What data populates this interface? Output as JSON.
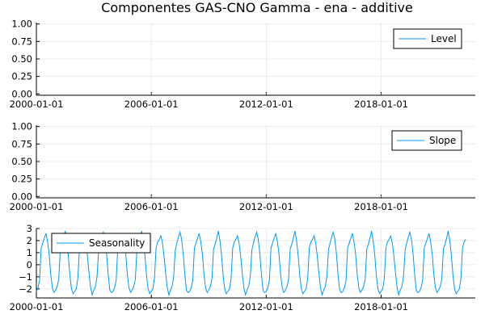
{
  "title": "Componentes GAS-CNO Gamma - ena - additive",
  "colors": {
    "series": "#009AFA",
    "grid": "#E6E6E6",
    "axis": "#000000",
    "background": "#FFFFFF"
  },
  "chart_data": [
    {
      "type": "line",
      "series": [
        {
          "name": "Level",
          "x": [],
          "values": []
        }
      ],
      "xlim": [
        "2000-01-01",
        "2022-12-01"
      ],
      "ylim": [
        -0.02,
        1.02
      ],
      "xticks": [
        "2000-01-01",
        "2006-01-01",
        "2012-01-01",
        "2018-01-01"
      ],
      "yticks": [
        0.0,
        0.25,
        0.5,
        0.75,
        1.0
      ],
      "ytick_labels": [
        "0.00",
        "0.25",
        "0.50",
        "0.75",
        "1.00"
      ],
      "legend_position": "top-right",
      "grid": true
    },
    {
      "type": "line",
      "series": [
        {
          "name": "Slope",
          "x": [],
          "values": []
        }
      ],
      "xlim": [
        "2000-01-01",
        "2022-12-01"
      ],
      "ylim": [
        -0.02,
        1.02
      ],
      "xticks": [
        "2000-01-01",
        "2006-01-01",
        "2012-01-01",
        "2018-01-01"
      ],
      "yticks": [
        0.0,
        0.25,
        0.5,
        0.75,
        1.0
      ],
      "ytick_labels": [
        "0.00",
        "0.25",
        "0.50",
        "0.75",
        "1.00"
      ],
      "legend_position": "top-right",
      "grid": true
    },
    {
      "type": "line",
      "series": [
        {
          "name": "Seasonality",
          "x_start": "2000-01-01",
          "x_end": "2022-06-01",
          "x_step": "1 month",
          "values": [
            -2.2,
            -1.9,
            -1.3,
            1.4,
            1.8,
            2.2,
            2.6,
            1.9,
            0.9,
            -0.8,
            -1.9,
            -2.3,
            -2.1,
            -1.8,
            -1.2,
            1.3,
            1.7,
            2.2,
            2.8,
            2.0,
            0.8,
            -0.9,
            -2.0,
            -2.4,
            -2.2,
            -2.0,
            -1.1,
            1.4,
            1.9,
            2.1,
            2.4,
            1.8,
            0.7,
            -0.7,
            -1.9,
            -2.5,
            -2.1,
            -1.8,
            -1.0,
            1.2,
            1.8,
            2.3,
            2.7,
            2.1,
            0.9,
            -0.8,
            -2.1,
            -2.3
          ]
        }
      ],
      "xlim": [
        "2000-01-01",
        "2022-12-01"
      ],
      "ylim": [
        -2.75,
        3.0
      ],
      "xticks": [
        "2000-01-01",
        "2006-01-01",
        "2012-01-01",
        "2018-01-01"
      ],
      "yticks": [
        -2,
        -1,
        0,
        1,
        2,
        3
      ],
      "ytick_labels": [
        "−2",
        "−1",
        "0",
        "1",
        "2",
        "3"
      ],
      "legend_position": "top-left",
      "grid": true
    }
  ]
}
